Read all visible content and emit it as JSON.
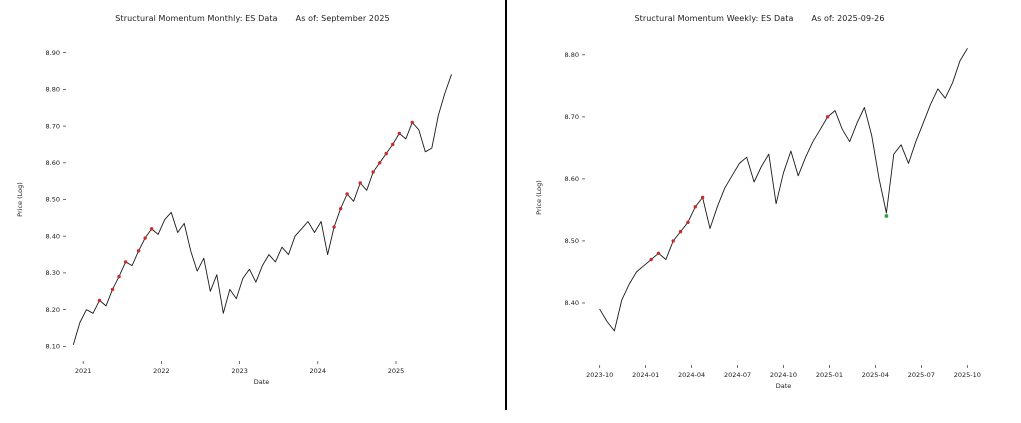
{
  "page": {
    "background": "#ffffff",
    "divider_color": "#000000"
  },
  "chart_data": [
    {
      "type": "line",
      "title": "Structural Momentum Monthly: ES Data",
      "as_of": "As of: September 2025",
      "xlabel": "Date",
      "ylabel": "Price (Log)",
      "grid": false,
      "legend": "none",
      "line_color": "#1a1a1a",
      "signal_marker_color": "#cc2a2a",
      "reversal_marker_color": "#2e9e44",
      "xlim": [
        2020.78,
        2025.78
      ],
      "ylim": [
        8.06,
        8.94
      ],
      "x_ticks": [
        2021,
        2022,
        2023,
        2024,
        2025
      ],
      "x_tick_labels": [
        "2021",
        "2022",
        "2023",
        "2024",
        "2025"
      ],
      "y_ticks": [
        8.1,
        8.2,
        8.3,
        8.4,
        8.5,
        8.6,
        8.7,
        8.8,
        8.9
      ],
      "y_tick_labels": [
        "8.10",
        "8.20",
        "8.30",
        "8.40",
        "8.50",
        "8.60",
        "8.70",
        "8.80",
        "8.90"
      ],
      "x": [
        2020.875,
        2020.958,
        2021.042,
        2021.125,
        2021.208,
        2021.292,
        2021.375,
        2021.458,
        2021.542,
        2021.625,
        2021.708,
        2021.792,
        2021.875,
        2021.958,
        2022.042,
        2022.125,
        2022.208,
        2022.292,
        2022.375,
        2022.458,
        2022.542,
        2022.625,
        2022.708,
        2022.792,
        2022.875,
        2022.958,
        2023.042,
        2023.125,
        2023.208,
        2023.292,
        2023.375,
        2023.458,
        2023.542,
        2023.625,
        2023.708,
        2023.792,
        2023.875,
        2023.958,
        2024.042,
        2024.125,
        2024.208,
        2024.292,
        2024.375,
        2024.458,
        2024.542,
        2024.625,
        2024.708,
        2024.792,
        2024.875,
        2024.958,
        2025.042,
        2025.125,
        2025.208,
        2025.292,
        2025.375,
        2025.458,
        2025.542,
        2025.625,
        2025.708
      ],
      "y": [
        8.105,
        8.165,
        8.2,
        8.19,
        8.225,
        8.21,
        8.255,
        8.29,
        8.33,
        8.32,
        8.36,
        8.395,
        8.42,
        8.405,
        8.445,
        8.465,
        8.41,
        8.435,
        8.36,
        8.305,
        8.34,
        8.25,
        8.295,
        8.19,
        8.255,
        8.23,
        8.285,
        8.31,
        8.275,
        8.32,
        8.35,
        8.33,
        8.37,
        8.35,
        8.4,
        8.42,
        8.44,
        8.41,
        8.44,
        8.35,
        8.425,
        8.475,
        8.515,
        8.495,
        8.545,
        8.525,
        8.575,
        8.6,
        8.625,
        8.65,
        8.68,
        8.665,
        8.71,
        8.69,
        8.63,
        8.64,
        8.73,
        8.79,
        8.84
      ],
      "red_marker_indices": [
        4,
        6,
        7,
        8,
        10,
        11,
        12,
        40,
        41,
        42,
        44,
        46,
        47,
        48,
        49,
        50,
        52
      ],
      "green_marker_indices": []
    },
    {
      "type": "line",
      "title": "Structural Momentum Weekly: ES Data",
      "as_of": "As of: 2025-09-26",
      "xlabel": "Date",
      "ylabel": "Price (Log)",
      "grid": false,
      "legend": "none",
      "line_color": "#1a1a1a",
      "signal_marker_color": "#cc2a2a",
      "reversal_marker_color": "#2e9e44",
      "xlim": [
        2023.67,
        2025.83
      ],
      "ylim": [
        8.3,
        8.84
      ],
      "x_ticks": [
        2023.75,
        2024.0,
        2024.25,
        2024.5,
        2024.75,
        2025.0,
        2025.25,
        2025.5,
        2025.75
      ],
      "x_tick_labels": [
        "2023-10",
        "2024-01",
        "2024-04",
        "2024-07",
        "2024-10",
        "2025-01",
        "2025-04",
        "2025-07",
        "2025-10"
      ],
      "y_ticks": [
        8.4,
        8.5,
        8.6,
        8.7,
        8.8
      ],
      "y_tick_labels": [
        "8.40",
        "8.50",
        "8.60",
        "8.70",
        "8.80"
      ],
      "x": [
        2023.75,
        2023.79,
        2023.83,
        2023.87,
        2023.91,
        2023.95,
        2023.99,
        2024.03,
        2024.07,
        2024.11,
        2024.15,
        2024.19,
        2024.23,
        2024.27,
        2024.31,
        2024.35,
        2024.39,
        2024.43,
        2024.47,
        2024.51,
        2024.55,
        2024.59,
        2024.63,
        2024.67,
        2024.71,
        2024.75,
        2024.79,
        2024.83,
        2024.87,
        2024.91,
        2024.95,
        2024.99,
        2025.03,
        2025.07,
        2025.11,
        2025.15,
        2025.19,
        2025.23,
        2025.27,
        2025.31,
        2025.35,
        2025.39,
        2025.43,
        2025.47,
        2025.51,
        2025.55,
        2025.59,
        2025.63,
        2025.67,
        2025.71,
        2025.75
      ],
      "y": [
        8.39,
        8.37,
        8.355,
        8.405,
        8.43,
        8.45,
        8.46,
        8.47,
        8.48,
        8.47,
        8.5,
        8.515,
        8.53,
        8.555,
        8.57,
        8.52,
        8.555,
        8.585,
        8.605,
        8.625,
        8.635,
        8.595,
        8.62,
        8.64,
        8.56,
        8.61,
        8.645,
        8.605,
        8.635,
        8.66,
        8.68,
        8.7,
        8.71,
        8.68,
        8.66,
        8.69,
        8.715,
        8.67,
        8.6,
        8.545,
        8.64,
        8.655,
        8.625,
        8.66,
        8.69,
        8.72,
        8.745,
        8.73,
        8.755,
        8.79,
        8.81
      ],
      "red_marker_indices": [
        7,
        8,
        10,
        11,
        12,
        13,
        14,
        31
      ],
      "green_marker_indices": [
        39
      ]
    }
  ]
}
